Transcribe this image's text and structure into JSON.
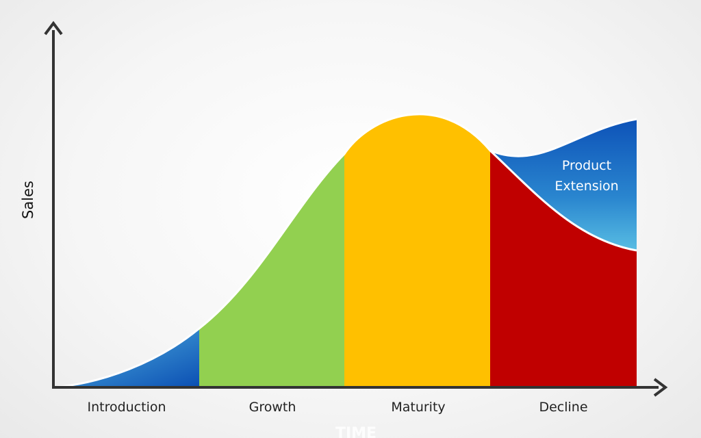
{
  "axis": {
    "y_label": "Sales",
    "x_label": "TIME"
  },
  "stages": [
    {
      "label": "Introduction",
      "color": "#1565c0"
    },
    {
      "label": "Growth",
      "color": "#92d050"
    },
    {
      "label": "Maturity",
      "color": "#ffc000"
    },
    {
      "label": "Decline",
      "color": "#c00000"
    }
  ],
  "extension": {
    "line1": "Product",
    "line2": "Extension",
    "color": "#1565c0"
  }
}
